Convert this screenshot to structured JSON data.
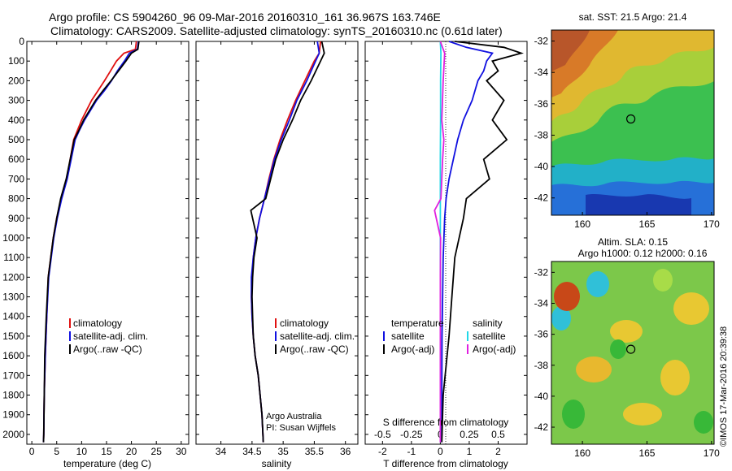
{
  "header": {
    "line1": "Argo profile: CS 5904260_96 09-Mar-2016 20160310_161 36.967S 163.746E",
    "line2": "Climatology: CARS2009. Satellite-adjusted climatology: synTS_20160310.nc (0.61d later)"
  },
  "credit": "Argo Australia",
  "pi": "PI: Susan Wijffels",
  "watermark": "©IMOS 17-Mar-2016 20:39:38",
  "colors": {
    "climatology": "#e01010",
    "satellite": "#1010e0",
    "argo": "#000000",
    "cyan": "#20d8e8",
    "magenta": "#e020e0"
  },
  "chart_data": [
    {
      "type": "line",
      "xlabel": "temperature (deg C)",
      "ylim": [
        2050,
        0
      ],
      "xlim": [
        -1,
        31.5
      ],
      "xticks": [
        0,
        5,
        10,
        15,
        20,
        25,
        30
      ],
      "yticks": [
        0,
        100,
        200,
        300,
        400,
        500,
        600,
        700,
        800,
        900,
        1000,
        1100,
        1200,
        1300,
        1400,
        1500,
        1600,
        1700,
        1800,
        1900,
        2000
      ],
      "legend": [
        "climatology",
        "satellite-adj. clim.",
        "Argo(..raw -QC)"
      ],
      "series": [
        {
          "name": "climatology",
          "color": "#e01010",
          "x": [
            21.0,
            20.8,
            18.5,
            17.0,
            15.8,
            14.6,
            13.3,
            12.0,
            11.0,
            10.0,
            9.2,
            8.4,
            7.7,
            7.0,
            5.9,
            5.0,
            4.3,
            3.8,
            3.3,
            3.0,
            2.7,
            2.5,
            2.4,
            2.35
          ],
          "y": [
            0,
            40,
            60,
            100,
            150,
            200,
            250,
            300,
            350,
            400,
            450,
            500,
            600,
            700,
            800,
            900,
            1000,
            1100,
            1200,
            1400,
            1600,
            1800,
            2000,
            2040
          ]
        },
        {
          "name": "satellite-adj. clim.",
          "color": "#1010e0",
          "x": [
            21.4,
            21.2,
            19.6,
            18.6,
            17.2,
            16.0,
            14.6,
            13.0,
            11.8,
            10.6,
            9.6,
            8.7,
            7.9,
            7.1,
            6.0,
            5.1,
            4.4,
            3.9,
            3.4,
            3.0,
            2.7,
            2.5,
            2.4,
            2.35
          ],
          "y": [
            0,
            40,
            60,
            100,
            150,
            200,
            250,
            300,
            350,
            400,
            450,
            500,
            600,
            700,
            800,
            900,
            1000,
            1100,
            1200,
            1400,
            1600,
            1800,
            2000,
            2040
          ]
        },
        {
          "name": "Argo(..raw -QC)",
          "color": "#000000",
          "x": [
            21.5,
            21.3,
            20.0,
            18.9,
            17.4,
            15.9,
            14.3,
            12.8,
            11.6,
            10.4,
            9.5,
            8.5,
            7.7,
            6.9,
            5.8,
            5.0,
            4.3,
            3.8,
            3.3,
            2.9,
            2.6,
            2.5,
            2.4,
            2.35
          ],
          "y": [
            0,
            40,
            60,
            100,
            150,
            200,
            250,
            300,
            350,
            400,
            450,
            500,
            600,
            700,
            800,
            900,
            1000,
            1100,
            1200,
            1400,
            1600,
            1800,
            2000,
            2040
          ]
        }
      ]
    },
    {
      "type": "line",
      "xlabel": "salinity",
      "xlim": [
        33.6,
        36.2
      ],
      "xticks": [
        34,
        34.5,
        35,
        35.5,
        36
      ],
      "legend": [
        "climatology",
        "satellite-adj. clim.",
        "Argo(..raw -QC)"
      ],
      "series": [
        {
          "name": "climatology",
          "color": "#e01010",
          "x": [
            35.6,
            35.58,
            35.5,
            35.35,
            35.2,
            35.07,
            34.95,
            34.85,
            34.77,
            34.7,
            34.62,
            34.56,
            34.52,
            34.5,
            34.49,
            34.5,
            34.52,
            34.55,
            34.6,
            34.63,
            34.66,
            34.68
          ],
          "y": [
            0,
            60,
            100,
            200,
            300,
            400,
            500,
            600,
            700,
            800,
            900,
            1000,
            1100,
            1200,
            1300,
            1400,
            1500,
            1600,
            1700,
            1800,
            1900,
            2040
          ]
        },
        {
          "name": "satellite-adj. clim.",
          "color": "#1010e0",
          "x": [
            35.55,
            35.58,
            35.52,
            35.38,
            35.22,
            35.1,
            34.97,
            34.86,
            34.78,
            34.7,
            34.62,
            34.56,
            34.52,
            34.49,
            34.49,
            34.5,
            34.52,
            34.55,
            34.6,
            34.63,
            34.66,
            34.68
          ],
          "y": [
            0,
            60,
            100,
            200,
            300,
            400,
            500,
            600,
            700,
            800,
            900,
            1000,
            1100,
            1200,
            1300,
            1400,
            1500,
            1600,
            1700,
            1800,
            1900,
            2040
          ]
        },
        {
          "name": "Argo(..raw -QC)",
          "color": "#000000",
          "x": [
            35.62,
            35.66,
            35.6,
            35.45,
            35.28,
            35.15,
            35.0,
            34.88,
            34.8,
            34.72,
            34.48,
            34.58,
            34.53,
            34.51,
            34.5,
            34.51,
            34.52,
            34.55,
            34.6,
            34.63,
            34.66,
            34.68
          ],
          "y": [
            0,
            60,
            100,
            200,
            300,
            400,
            500,
            600,
            700,
            800,
            860,
            1000,
            1100,
            1200,
            1300,
            1400,
            1500,
            1600,
            1700,
            1800,
            1900,
            2040
          ]
        }
      ]
    },
    {
      "type": "line",
      "xlabel": "T difference from climatology",
      "toplabel": "S difference from climatology",
      "xlim": [
        -2.6,
        3.0
      ],
      "xticks": [
        -2,
        -1,
        0,
        1,
        2
      ],
      "sticks": [
        -0.5,
        -0.25,
        0,
        0.25,
        0.5
      ],
      "legend_t_title": "temperature",
      "legend_s_title": "salinity",
      "legend": [
        "satellite",
        "Argo(-adj)",
        "satellite",
        "Argo(-adj)"
      ],
      "series": [
        {
          "name": "T satellite",
          "color": "#1010e0",
          "x": [
            0.3,
            0.9,
            1.8,
            1.6,
            1.5,
            1.3,
            1.1,
            0.8,
            0.6,
            0.45,
            0.3,
            0.2,
            0.15,
            0.1,
            0.08,
            0.06,
            0.05,
            0.04
          ],
          "y": [
            0,
            30,
            60,
            100,
            150,
            200,
            300,
            400,
            500,
            600,
            700,
            800,
            900,
            1100,
            1300,
            1500,
            1800,
            2040
          ]
        },
        {
          "name": "T Argo(-adj)",
          "color": "#000000",
          "x": [
            0.5,
            2.2,
            2.8,
            1.8,
            2.0,
            1.6,
            2.2,
            1.8,
            2.3,
            1.5,
            1.7,
            0.9,
            0.8,
            0.5,
            0.4,
            0.3,
            0.1,
            0.05
          ],
          "y": [
            0,
            30,
            60,
            100,
            150,
            200,
            300,
            400,
            500,
            600,
            700,
            800,
            900,
            1100,
            1300,
            1500,
            1800,
            2040
          ]
        },
        {
          "name": "S satellite",
          "color": "#20d8e8",
          "x": [
            0.0,
            0.02,
            0.01,
            0.01,
            0.0,
            0.0,
            0.0,
            0.0,
            0.0,
            0.0,
            0.0,
            0.0
          ],
          "y": [
            0,
            60,
            200,
            400,
            600,
            800,
            1000,
            1200,
            1400,
            1600,
            1800,
            2040
          ]
        },
        {
          "name": "S Argo(-adj)",
          "color": "#e020e0",
          "x": [
            0.0,
            0.15,
            0.1,
            0.05,
            0.12,
            0.08,
            0.05,
            0.02,
            -0.2,
            0.01,
            0.0,
            0.0,
            0.0
          ],
          "y": [
            0,
            60,
            200,
            400,
            500,
            600,
            700,
            800,
            860,
            1000,
            1200,
            1600,
            2040
          ]
        }
      ]
    },
    {
      "type": "heatmap",
      "title": "sat. SST: 21.5  Argo: 21.4",
      "xticks": [
        160,
        165,
        170
      ],
      "yticks": [
        -32,
        -34,
        -36,
        -38,
        -40,
        -42
      ],
      "xlim": [
        157.6,
        170.2
      ],
      "ylim": [
        -43.1,
        -31.3
      ],
      "marker": [
        163.746,
        -36.967
      ]
    },
    {
      "type": "heatmap",
      "title": "Altim. SLA: 0.15",
      "subtitle": "Argo h1000: 0.12  h2000: 0.16",
      "xticks": [
        160,
        165,
        170
      ],
      "yticks": [
        -32,
        -34,
        -36,
        -38,
        -40,
        -42
      ],
      "xlim": [
        157.6,
        170.2
      ],
      "ylim": [
        -43.1,
        -31.3
      ],
      "marker": [
        163.746,
        -36.967
      ]
    }
  ]
}
